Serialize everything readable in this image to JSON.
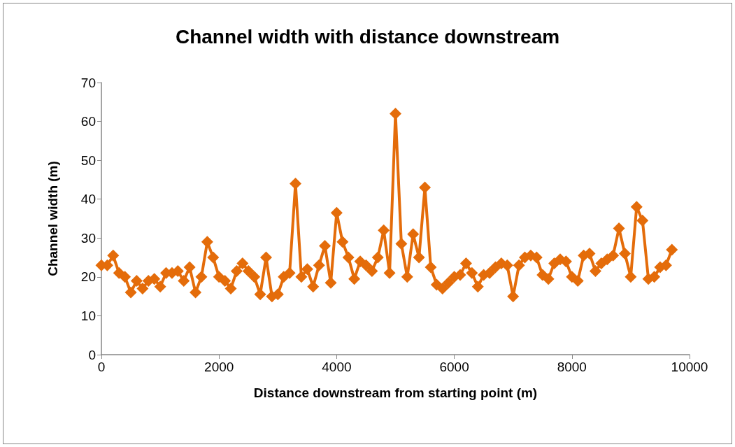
{
  "chart_data": {
    "type": "line",
    "title": "Channel width with distance downstream",
    "xlabel": "Distance downstream from starting point (m)",
    "ylabel": "Channel width (m)",
    "x": [
      0,
      100,
      200,
      300,
      400,
      500,
      600,
      700,
      800,
      900,
      1000,
      1100,
      1200,
      1300,
      1400,
      1500,
      1600,
      1700,
      1800,
      1900,
      2000,
      2100,
      2200,
      2300,
      2400,
      2500,
      2600,
      2700,
      2800,
      2900,
      3000,
      3100,
      3200,
      3300,
      3400,
      3500,
      3600,
      3700,
      3800,
      3900,
      4000,
      4100,
      4200,
      4300,
      4400,
      4500,
      4600,
      4700,
      4800,
      4900,
      5000,
      5100,
      5200,
      5300,
      5400,
      5500,
      5600,
      5700,
      5800,
      5900,
      6000,
      6100,
      6200,
      6300,
      6400,
      6500,
      6600,
      6700,
      6800,
      6900,
      7000,
      7100,
      7200,
      7300,
      7400,
      7500,
      7600,
      7700,
      7800,
      7900,
      8000,
      8100,
      8200,
      8300,
      8400,
      8500,
      8600,
      8700,
      8800,
      8900,
      9000,
      9100,
      9200,
      9300,
      9400,
      9500,
      9600,
      9700
    ],
    "series": [
      {
        "color": "#e46c0a",
        "values": [
          23,
          23,
          25.5,
          21,
          20,
          16,
          19,
          17,
          19,
          19.5,
          17.5,
          21,
          21,
          21.5,
          19,
          22.5,
          16,
          20,
          29,
          25,
          20,
          19,
          17,
          21.5,
          23.5,
          21.5,
          20,
          15.5,
          25,
          15,
          15.5,
          20,
          21,
          44,
          20,
          22,
          17.5,
          23,
          28,
          18.5,
          36.5,
          29,
          25,
          19.5,
          24,
          23,
          21.5,
          25,
          32,
          21,
          62,
          28.5,
          20,
          31,
          25,
          43,
          22.5,
          18,
          17,
          18.5,
          20,
          20.5,
          23.5,
          21,
          17.5,
          20.5,
          21,
          22.5,
          23.5,
          23,
          15,
          23,
          25,
          25.5,
          25,
          20.5,
          19.5,
          23.5,
          24.5,
          24,
          20,
          19,
          25.5,
          26,
          21.5,
          23.5,
          24.5,
          25.5,
          32.5,
          26,
          20,
          38,
          34.5,
          19.5,
          20,
          22.5,
          23,
          27
        ]
      }
    ],
    "xlim": [
      0,
      10000
    ],
    "xticks": [
      0,
      2000,
      4000,
      6000,
      8000,
      10000
    ],
    "ylim": [
      0,
      70
    ],
    "yticks": [
      0,
      10,
      20,
      30,
      40,
      50,
      60,
      70
    ],
    "grid": false,
    "marker": "diamond",
    "line_style": "solid"
  }
}
